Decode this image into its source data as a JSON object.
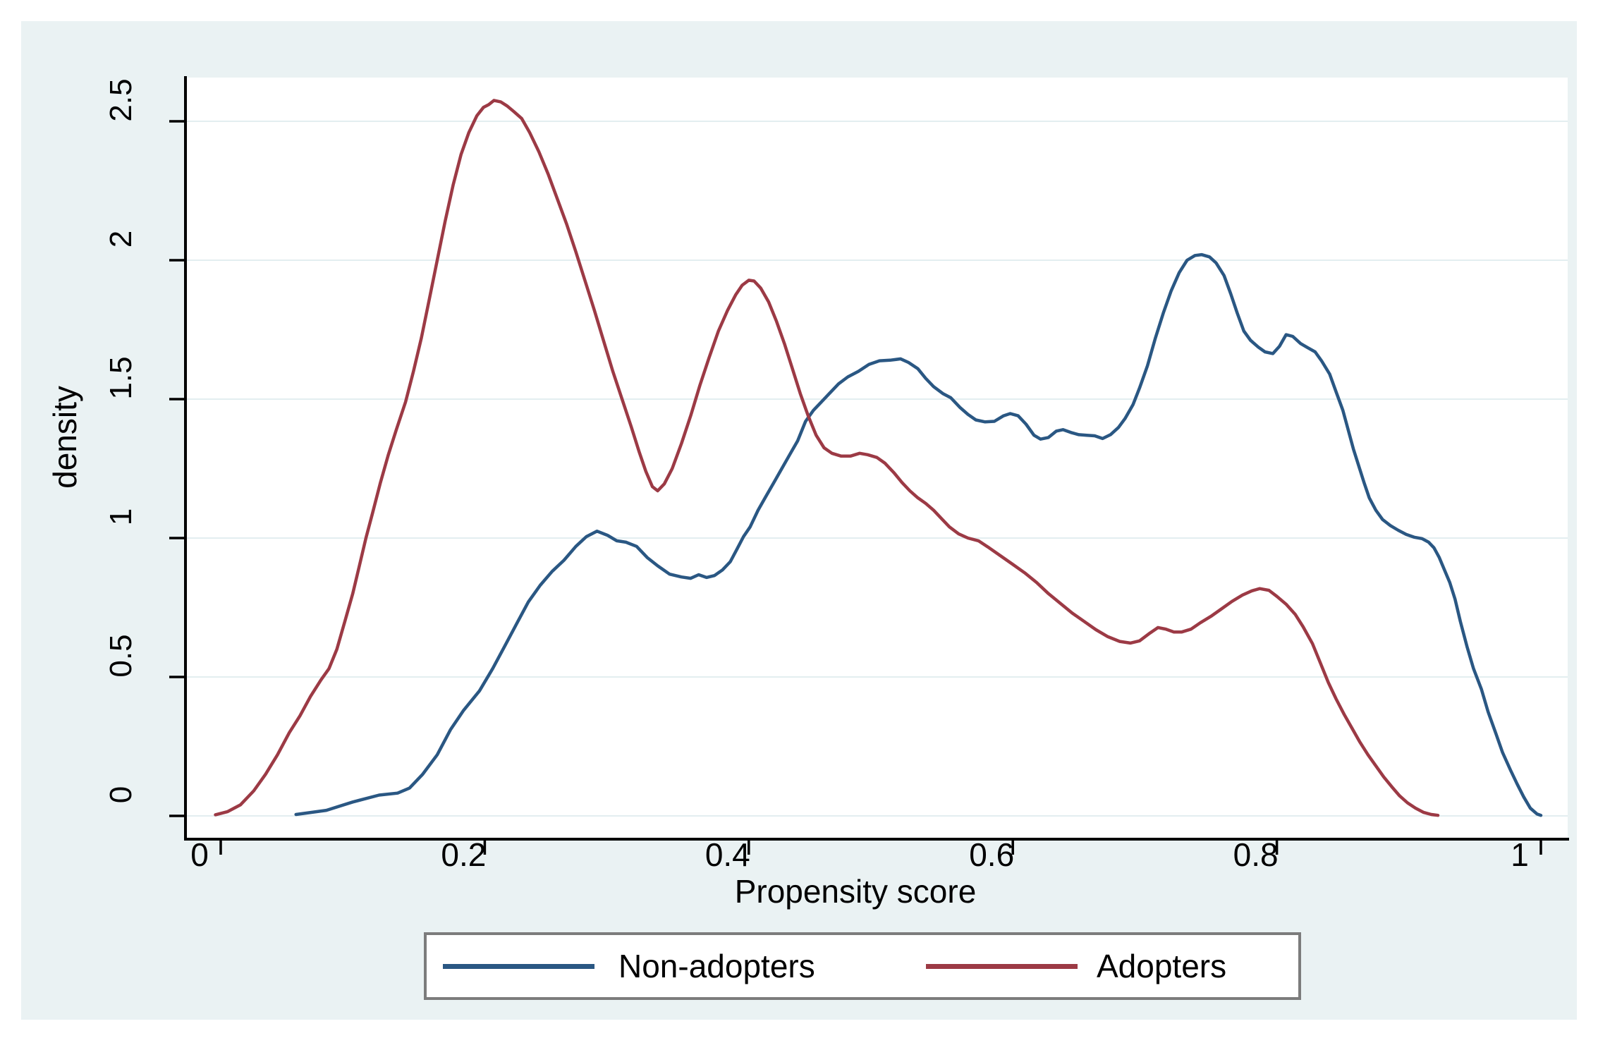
{
  "figure": {
    "background_color": "#eaf2f3",
    "plot_background_color": "#ffffff",
    "grid_color": "#e3eef0",
    "axis_color": "#000000",
    "text_color": "#000000",
    "legend_border_color": "#7c7c7c",
    "legend_background_color": "#ffffff"
  },
  "chart_data": {
    "type": "line",
    "title": "",
    "xlabel": "Propensity score",
    "ylabel": "density",
    "xlim": [
      0,
      1
    ],
    "ylim": [
      0,
      2.5
    ],
    "grid": "horizontal",
    "legend_position": "bottom",
    "x_ticks": [
      {
        "value": 0,
        "label": "0"
      },
      {
        "value": 0.2,
        "label": "0.2"
      },
      {
        "value": 0.4,
        "label": "0.4"
      },
      {
        "value": 0.6,
        "label": "0.6"
      },
      {
        "value": 0.8,
        "label": "0.8"
      },
      {
        "value": 1,
        "label": "1"
      }
    ],
    "y_ticks": [
      {
        "value": 0,
        "label": "0"
      },
      {
        "value": 0.5,
        "label": "0.5"
      },
      {
        "value": 1,
        "label": "1"
      },
      {
        "value": 1.5,
        "label": "1.5"
      },
      {
        "value": 2,
        "label": "2"
      },
      {
        "value": 2.5,
        "label": "2.5"
      }
    ],
    "series": [
      {
        "name": "Non-adopters",
        "color": "#2a5783",
        "points": [
          [
            0.057,
            0.005
          ],
          [
            0.08,
            0.02
          ],
          [
            0.1,
            0.05
          ],
          [
            0.12,
            0.075
          ],
          [
            0.134,
            0.082
          ],
          [
            0.143,
            0.1
          ],
          [
            0.153,
            0.15
          ],
          [
            0.164,
            0.22
          ],
          [
            0.174,
            0.31
          ],
          [
            0.184,
            0.38
          ],
          [
            0.196,
            0.45
          ],
          [
            0.206,
            0.53
          ],
          [
            0.215,
            0.61
          ],
          [
            0.224,
            0.69
          ],
          [
            0.233,
            0.77
          ],
          [
            0.242,
            0.83
          ],
          [
            0.251,
            0.88
          ],
          [
            0.26,
            0.92
          ],
          [
            0.269,
            0.97
          ],
          [
            0.277,
            1.005
          ],
          [
            0.285,
            1.025
          ],
          [
            0.293,
            1.01
          ],
          [
            0.3,
            0.99
          ],
          [
            0.307,
            0.985
          ],
          [
            0.315,
            0.97
          ],
          [
            0.323,
            0.93
          ],
          [
            0.331,
            0.9
          ],
          [
            0.34,
            0.87
          ],
          [
            0.349,
            0.86
          ],
          [
            0.356,
            0.855
          ],
          [
            0.362,
            0.868
          ],
          [
            0.368,
            0.858
          ],
          [
            0.374,
            0.865
          ],
          [
            0.38,
            0.885
          ],
          [
            0.386,
            0.915
          ],
          [
            0.391,
            0.96
          ],
          [
            0.396,
            1.005
          ],
          [
            0.401,
            1.04
          ],
          [
            0.407,
            1.1
          ],
          [
            0.413,
            1.15
          ],
          [
            0.419,
            1.2
          ],
          [
            0.425,
            1.25
          ],
          [
            0.431,
            1.3
          ],
          [
            0.437,
            1.35
          ],
          [
            0.443,
            1.42
          ],
          [
            0.449,
            1.46
          ],
          [
            0.455,
            1.49
          ],
          [
            0.461,
            1.52
          ],
          [
            0.468,
            1.555
          ],
          [
            0.475,
            1.58
          ],
          [
            0.483,
            1.6
          ],
          [
            0.491,
            1.625
          ],
          [
            0.499,
            1.638
          ],
          [
            0.507,
            1.64
          ],
          [
            0.515,
            1.645
          ],
          [
            0.521,
            1.632
          ],
          [
            0.528,
            1.61
          ],
          [
            0.534,
            1.575
          ],
          [
            0.54,
            1.545
          ],
          [
            0.547,
            1.52
          ],
          [
            0.553,
            1.505
          ],
          [
            0.56,
            1.47
          ],
          [
            0.566,
            1.445
          ],
          [
            0.572,
            1.425
          ],
          [
            0.579,
            1.418
          ],
          [
            0.586,
            1.42
          ],
          [
            0.593,
            1.44
          ],
          [
            0.598,
            1.448
          ],
          [
            0.604,
            1.44
          ],
          [
            0.61,
            1.41
          ],
          [
            0.616,
            1.37
          ],
          [
            0.621,
            1.356
          ],
          [
            0.627,
            1.362
          ],
          [
            0.633,
            1.385
          ],
          [
            0.638,
            1.39
          ],
          [
            0.644,
            1.38
          ],
          [
            0.65,
            1.372
          ],
          [
            0.656,
            1.37
          ],
          [
            0.662,
            1.368
          ],
          [
            0.668,
            1.358
          ],
          [
            0.674,
            1.372
          ],
          [
            0.68,
            1.398
          ],
          [
            0.685,
            1.43
          ],
          [
            0.691,
            1.48
          ],
          [
            0.696,
            1.54
          ],
          [
            0.702,
            1.62
          ],
          [
            0.708,
            1.72
          ],
          [
            0.714,
            1.81
          ],
          [
            0.72,
            1.89
          ],
          [
            0.726,
            1.955
          ],
          [
            0.732,
            2.0
          ],
          [
            0.738,
            2.017
          ],
          [
            0.743,
            2.02
          ],
          [
            0.749,
            2.012
          ],
          [
            0.754,
            1.99
          ],
          [
            0.76,
            1.945
          ],
          [
            0.765,
            1.88
          ],
          [
            0.77,
            1.81
          ],
          [
            0.775,
            1.745
          ],
          [
            0.78,
            1.712
          ],
          [
            0.786,
            1.687
          ],
          [
            0.791,
            1.67
          ],
          [
            0.797,
            1.664
          ],
          [
            0.802,
            1.69
          ],
          [
            0.807,
            1.732
          ],
          [
            0.812,
            1.726
          ],
          [
            0.818,
            1.7
          ],
          [
            0.823,
            1.686
          ],
          [
            0.829,
            1.67
          ],
          [
            0.834,
            1.637
          ],
          [
            0.84,
            1.59
          ],
          [
            0.845,
            1.525
          ],
          [
            0.85,
            1.46
          ],
          [
            0.854,
            1.39
          ],
          [
            0.858,
            1.32
          ],
          [
            0.862,
            1.26
          ],
          [
            0.866,
            1.2
          ],
          [
            0.87,
            1.145
          ],
          [
            0.875,
            1.1
          ],
          [
            0.88,
            1.067
          ],
          [
            0.886,
            1.045
          ],
          [
            0.892,
            1.028
          ],
          [
            0.898,
            1.013
          ],
          [
            0.904,
            1.003
          ],
          [
            0.91,
            0.998
          ],
          [
            0.915,
            0.985
          ],
          [
            0.919,
            0.965
          ],
          [
            0.923,
            0.93
          ],
          [
            0.927,
            0.885
          ],
          [
            0.931,
            0.84
          ],
          [
            0.935,
            0.78
          ],
          [
            0.939,
            0.7
          ],
          [
            0.944,
            0.61
          ],
          [
            0.949,
            0.53
          ],
          [
            0.955,
            0.455
          ],
          [
            0.96,
            0.375
          ],
          [
            0.966,
            0.295
          ],
          [
            0.971,
            0.228
          ],
          [
            0.977,
            0.165
          ],
          [
            0.982,
            0.115
          ],
          [
            0.987,
            0.068
          ],
          [
            0.992,
            0.028
          ],
          [
            0.997,
            0.007
          ],
          [
            1.0,
            0.002
          ]
        ]
      },
      {
        "name": "Adopters",
        "color": "#9c3a45",
        "points": [
          [
            -0.004,
            0.004
          ],
          [
            0.005,
            0.015
          ],
          [
            0.015,
            0.04
          ],
          [
            0.025,
            0.09
          ],
          [
            0.034,
            0.15
          ],
          [
            0.043,
            0.22
          ],
          [
            0.052,
            0.3
          ],
          [
            0.06,
            0.36
          ],
          [
            0.068,
            0.43
          ],
          [
            0.076,
            0.49
          ],
          [
            0.082,
            0.53
          ],
          [
            0.088,
            0.6
          ],
          [
            0.094,
            0.7
          ],
          [
            0.1,
            0.8
          ],
          [
            0.105,
            0.9
          ],
          [
            0.11,
            1.0
          ],
          [
            0.115,
            1.09
          ],
          [
            0.121,
            1.2
          ],
          [
            0.127,
            1.3
          ],
          [
            0.133,
            1.39
          ],
          [
            0.14,
            1.49
          ],
          [
            0.146,
            1.6
          ],
          [
            0.152,
            1.72
          ],
          [
            0.158,
            1.86
          ],
          [
            0.164,
            2.0
          ],
          [
            0.17,
            2.14
          ],
          [
            0.176,
            2.27
          ],
          [
            0.182,
            2.38
          ],
          [
            0.188,
            2.46
          ],
          [
            0.194,
            2.52
          ],
          [
            0.199,
            2.55
          ],
          [
            0.203,
            2.56
          ],
          [
            0.207,
            2.575
          ],
          [
            0.212,
            2.57
          ],
          [
            0.217,
            2.555
          ],
          [
            0.222,
            2.535
          ],
          [
            0.228,
            2.51
          ],
          [
            0.234,
            2.46
          ],
          [
            0.241,
            2.39
          ],
          [
            0.248,
            2.31
          ],
          [
            0.255,
            2.22
          ],
          [
            0.262,
            2.13
          ],
          [
            0.269,
            2.03
          ],
          [
            0.276,
            1.925
          ],
          [
            0.283,
            1.82
          ],
          [
            0.29,
            1.71
          ],
          [
            0.297,
            1.6
          ],
          [
            0.304,
            1.5
          ],
          [
            0.311,
            1.4
          ],
          [
            0.317,
            1.31
          ],
          [
            0.322,
            1.24
          ],
          [
            0.327,
            1.185
          ],
          [
            0.331,
            1.17
          ],
          [
            0.336,
            1.195
          ],
          [
            0.342,
            1.25
          ],
          [
            0.349,
            1.34
          ],
          [
            0.356,
            1.44
          ],
          [
            0.363,
            1.55
          ],
          [
            0.37,
            1.65
          ],
          [
            0.377,
            1.745
          ],
          [
            0.384,
            1.82
          ],
          [
            0.39,
            1.875
          ],
          [
            0.395,
            1.91
          ],
          [
            0.4,
            1.928
          ],
          [
            0.404,
            1.925
          ],
          [
            0.409,
            1.9
          ],
          [
            0.415,
            1.85
          ],
          [
            0.421,
            1.78
          ],
          [
            0.427,
            1.7
          ],
          [
            0.433,
            1.61
          ],
          [
            0.439,
            1.52
          ],
          [
            0.445,
            1.44
          ],
          [
            0.451,
            1.37
          ],
          [
            0.457,
            1.325
          ],
          [
            0.463,
            1.305
          ],
          [
            0.47,
            1.295
          ],
          [
            0.477,
            1.295
          ],
          [
            0.484,
            1.305
          ],
          [
            0.49,
            1.3
          ],
          [
            0.497,
            1.29
          ],
          [
            0.503,
            1.27
          ],
          [
            0.51,
            1.235
          ],
          [
            0.516,
            1.2
          ],
          [
            0.522,
            1.17
          ],
          [
            0.528,
            1.145
          ],
          [
            0.534,
            1.125
          ],
          [
            0.54,
            1.1
          ],
          [
            0.546,
            1.07
          ],
          [
            0.552,
            1.04
          ],
          [
            0.559,
            1.015
          ],
          [
            0.566,
            1.0
          ],
          [
            0.574,
            0.99
          ],
          [
            0.582,
            0.965
          ],
          [
            0.591,
            0.935
          ],
          [
            0.6,
            0.905
          ],
          [
            0.609,
            0.875
          ],
          [
            0.618,
            0.84
          ],
          [
            0.627,
            0.8
          ],
          [
            0.636,
            0.765
          ],
          [
            0.645,
            0.73
          ],
          [
            0.654,
            0.7
          ],
          [
            0.663,
            0.67
          ],
          [
            0.672,
            0.645
          ],
          [
            0.681,
            0.628
          ],
          [
            0.689,
            0.622
          ],
          [
            0.696,
            0.63
          ],
          [
            0.703,
            0.655
          ],
          [
            0.71,
            0.678
          ],
          [
            0.716,
            0.672
          ],
          [
            0.722,
            0.662
          ],
          [
            0.728,
            0.662
          ],
          [
            0.735,
            0.672
          ],
          [
            0.742,
            0.695
          ],
          [
            0.75,
            0.718
          ],
          [
            0.758,
            0.745
          ],
          [
            0.766,
            0.772
          ],
          [
            0.774,
            0.795
          ],
          [
            0.781,
            0.81
          ],
          [
            0.787,
            0.818
          ],
          [
            0.794,
            0.812
          ],
          [
            0.8,
            0.79
          ],
          [
            0.807,
            0.762
          ],
          [
            0.814,
            0.725
          ],
          [
            0.82,
            0.68
          ],
          [
            0.827,
            0.62
          ],
          [
            0.833,
            0.55
          ],
          [
            0.839,
            0.48
          ],
          [
            0.845,
            0.42
          ],
          [
            0.851,
            0.365
          ],
          [
            0.857,
            0.315
          ],
          [
            0.863,
            0.265
          ],
          [
            0.869,
            0.22
          ],
          [
            0.875,
            0.18
          ],
          [
            0.881,
            0.14
          ],
          [
            0.887,
            0.105
          ],
          [
            0.893,
            0.072
          ],
          [
            0.899,
            0.047
          ],
          [
            0.905,
            0.028
          ],
          [
            0.911,
            0.013
          ],
          [
            0.917,
            0.005
          ],
          [
            0.922,
            0.002
          ]
        ]
      }
    ]
  },
  "legend": {
    "entries": [
      {
        "label": "Non-adopters"
      },
      {
        "label": "Adopters"
      }
    ]
  }
}
